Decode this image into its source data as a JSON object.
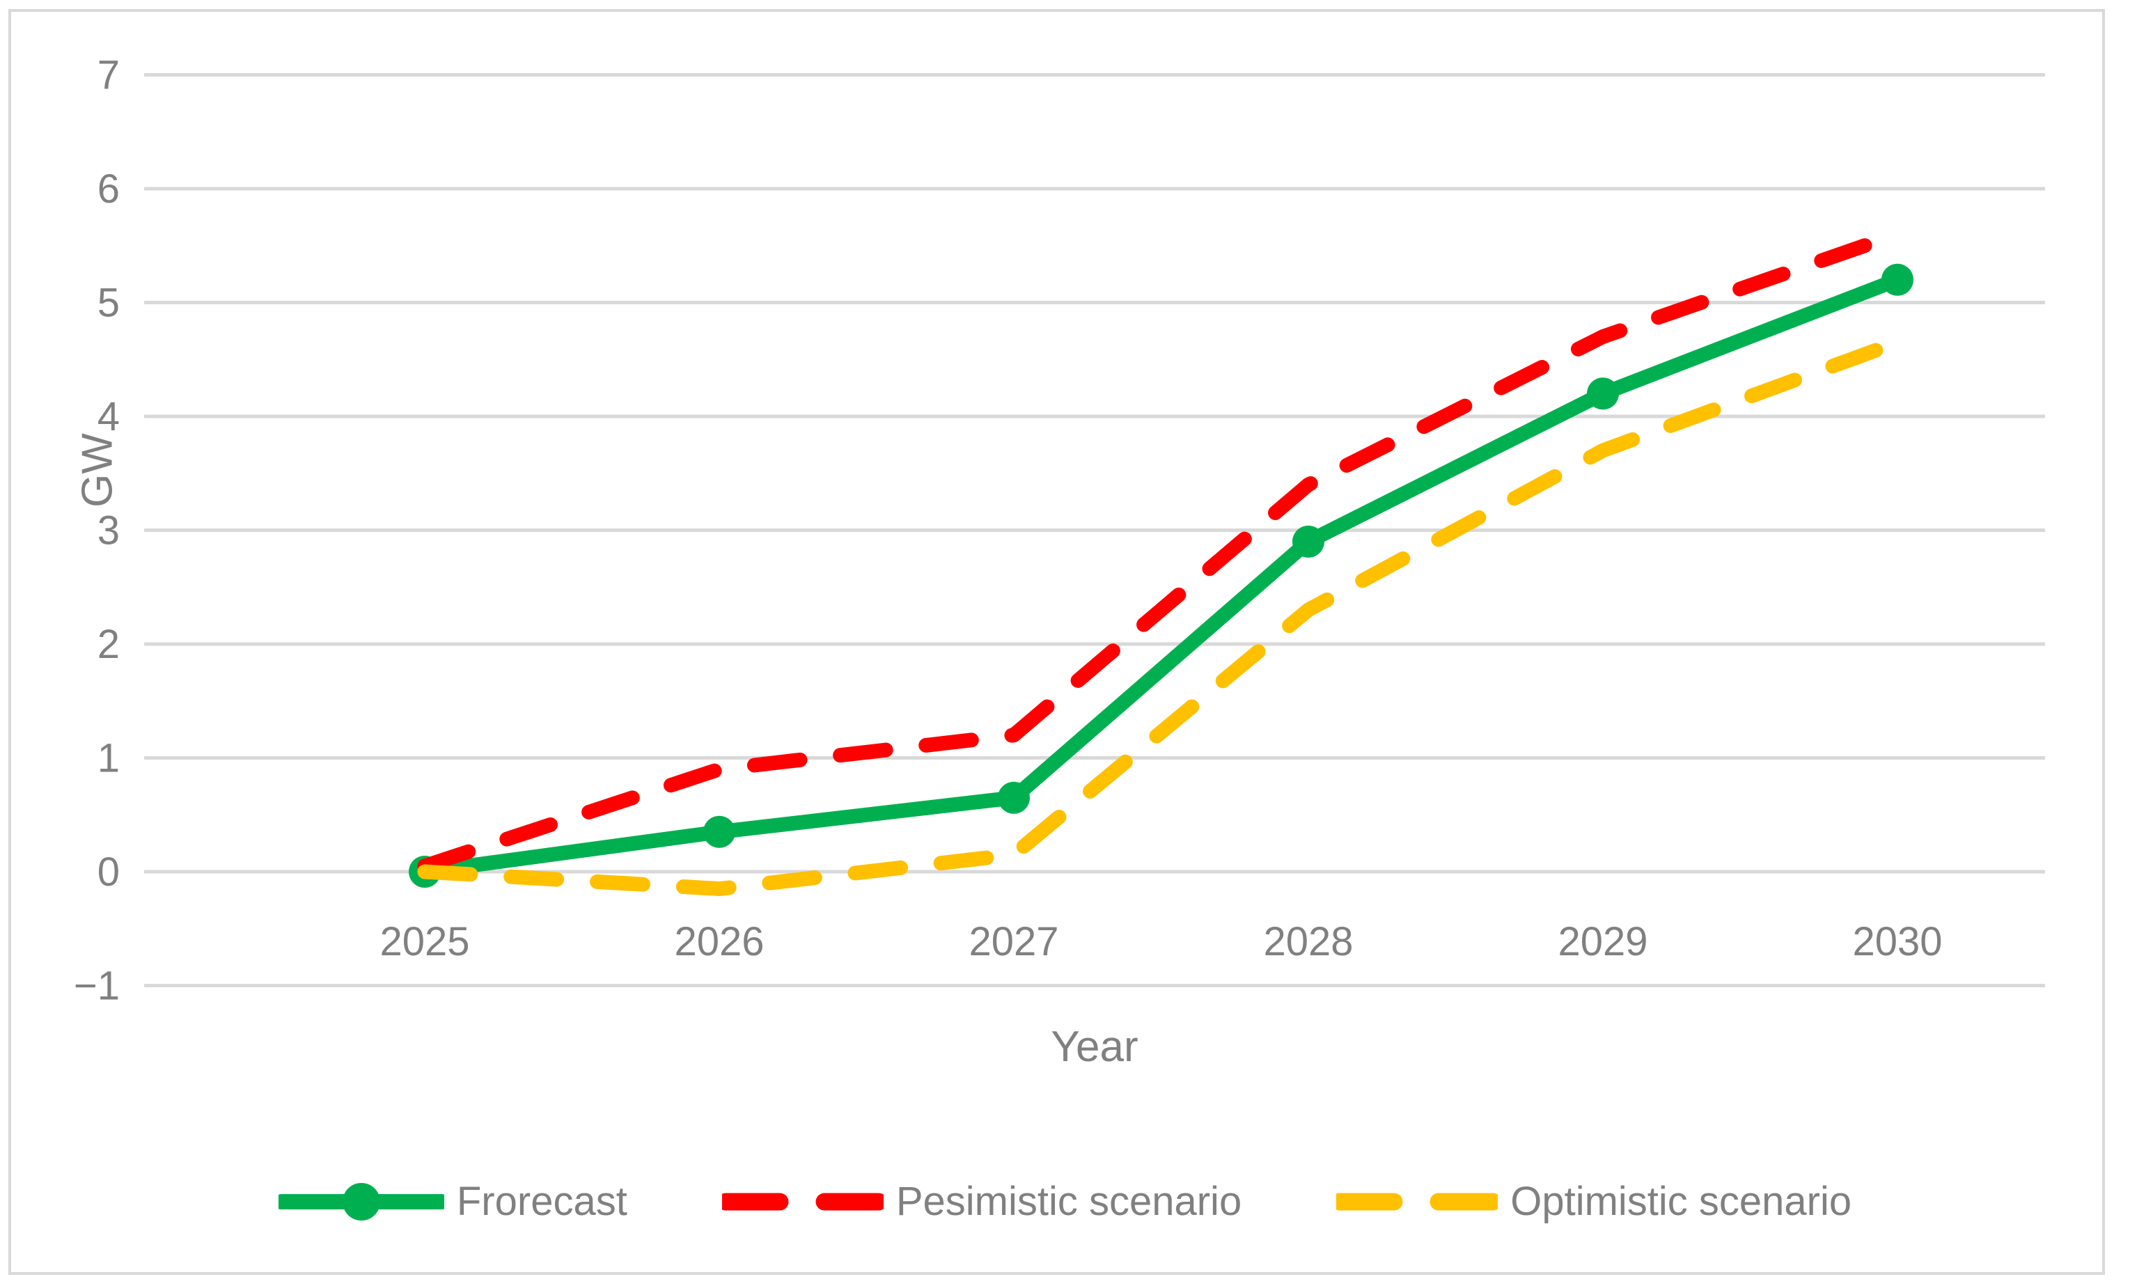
{
  "chart_data": {
    "type": "line",
    "title": "",
    "xlabel": "Year",
    "ylabel": "GW",
    "categories": [
      "2025",
      "2026",
      "2027",
      "2028",
      "2029",
      "2030"
    ],
    "yticks": [
      7,
      6,
      5,
      4,
      3,
      2,
      1,
      0,
      -1
    ],
    "ylim": [
      -1,
      7
    ],
    "grid": true,
    "legend_position": "bottom",
    "series": [
      {
        "name": "Frorecast",
        "color": "#00B050",
        "style": "solid",
        "marker": "circle",
        "values": [
          0,
          0.35,
          0.65,
          2.9,
          4.2,
          5.2
        ]
      },
      {
        "name": "Pesimistic scenario",
        "color": "#FF0000",
        "style": "dashed",
        "marker": "none",
        "values": [
          0.05,
          0.9,
          1.2,
          3.4,
          4.7,
          5.6
        ]
      },
      {
        "name": "Optimistic scenario",
        "color": "#FFC000",
        "style": "dashed",
        "marker": "none",
        "values": [
          0,
          -0.15,
          0.15,
          2.3,
          3.7,
          4.65
        ]
      }
    ],
    "colors": {
      "gridline": "#D9D9D9",
      "axis_text": "#808080",
      "frame_border": "#D9D9D9"
    }
  }
}
